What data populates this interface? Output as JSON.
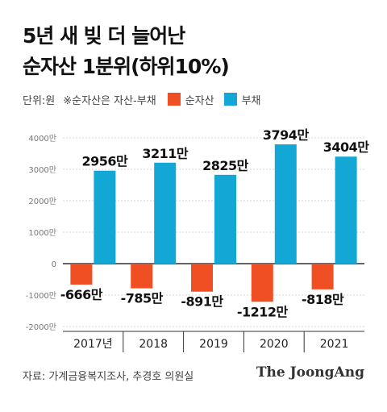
{
  "header": {
    "title_line1": "5년 새 빚 더 늘어난",
    "title_line2": "순자산 1분위(하위10%)"
  },
  "legend": {
    "unit": "단위:원",
    "note": "※순자산은 자산-부채"
  },
  "colors": {
    "net_assets": "#f04e23",
    "debt": "#12a7d4"
  },
  "chart_data": {
    "type": "bar",
    "categories": [
      "2017년",
      "2018",
      "2019",
      "2020",
      "2021"
    ],
    "series": [
      {
        "name": "순자산",
        "values": [
          -666,
          -785,
          -891,
          -1212,
          -818
        ],
        "labels": [
          "-666만",
          "-785만",
          "-891만",
          "-1212만",
          "-818만"
        ]
      },
      {
        "name": "부채",
        "values": [
          2956,
          3211,
          2825,
          3794,
          3404
        ],
        "labels": [
          "2956만",
          "3211만",
          "2825만",
          "3794만",
          "3404만"
        ]
      }
    ],
    "yticks": [
      4000,
      3000,
      2000,
      1000,
      0,
      -1000,
      -2000
    ],
    "ytick_labels": [
      "4000만",
      "3000만",
      "2000만",
      "1000만",
      "0",
      "-1000만",
      "-2000만"
    ],
    "ylim": [
      -2000,
      4000
    ],
    "grid": true,
    "legend_position": "top"
  },
  "footer": {
    "source": "자료: 가계금융복지조사, 추경호 의원실",
    "logo": "The JoongAng"
  }
}
